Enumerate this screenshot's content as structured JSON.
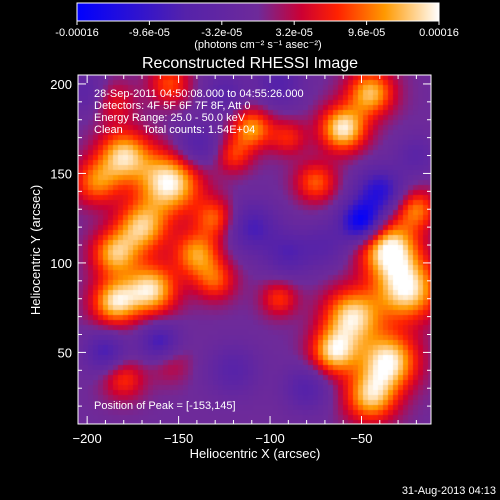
{
  "chart_data": {
    "type": "heatmap",
    "title": "Reconstructed RHESSI Image",
    "xlabel": "Heliocentric X (arcsec)",
    "ylabel": "Heliocentric Y (arcsec)",
    "xlim": [
      -205,
      -12
    ],
    "ylim": [
      10,
      205
    ],
    "x_ticks": [
      -200,
      -150,
      -100,
      -50
    ],
    "y_ticks": [
      50,
      100,
      150,
      200
    ],
    "colorbar": {
      "range": [
        -0.00016,
        0.00016
      ],
      "ticks": [
        -0.00016,
        -9.6e-05,
        -3.2e-05,
        3.2e-05,
        9.6e-05,
        0.00016
      ],
      "tick_labels": [
        "-0.00016",
        "-9.6e-05",
        "-3.2e-05",
        "3.2e-05",
        "9.6e-05",
        "0.00016"
      ],
      "unit_label": "(photons cm⁻² s⁻¹ asec⁻²)",
      "colors": [
        "#0000ff",
        "#6e2a9a",
        "#ff0000",
        "#ff9900",
        "#ffffff"
      ]
    },
    "annotations": {
      "time_range": "28-Sep-2011 04:50:08.000 to 04:55:26.000",
      "detectors": "Detectors: 4F 5F 6F 7F 8F, Att 0",
      "energy": "Energy Range: 25.0 - 50.0 keV",
      "clean": "Clean",
      "counts": "Total counts: 1.54E+04",
      "peak": "Position of Peak = [-153,145]"
    },
    "peak": {
      "x": -153,
      "y": 145
    },
    "sources": [
      {
        "x": -155,
        "y": 145,
        "v": 1.0,
        "s": 12
      },
      {
        "x": -180,
        "y": 160,
        "v": 0.85,
        "s": 10
      },
      {
        "x": -195,
        "y": 145,
        "v": 0.6,
        "s": 9
      },
      {
        "x": -170,
        "y": 120,
        "v": 0.8,
        "s": 10
      },
      {
        "x": -185,
        "y": 105,
        "v": 0.75,
        "s": 9
      },
      {
        "x": -140,
        "y": 105,
        "v": 0.7,
        "s": 9
      },
      {
        "x": -130,
        "y": 125,
        "v": 0.55,
        "s": 8
      },
      {
        "x": -165,
        "y": 85,
        "v": 0.9,
        "s": 10
      },
      {
        "x": -185,
        "y": 78,
        "v": 0.85,
        "s": 9
      },
      {
        "x": -130,
        "y": 90,
        "v": 0.5,
        "s": 8
      },
      {
        "x": -35,
        "y": 108,
        "v": 1.0,
        "s": 11
      },
      {
        "x": -25,
        "y": 85,
        "v": 0.95,
        "s": 12
      },
      {
        "x": -55,
        "y": 70,
        "v": 0.9,
        "s": 11
      },
      {
        "x": -35,
        "y": 45,
        "v": 0.95,
        "s": 11
      },
      {
        "x": -45,
        "y": 25,
        "v": 0.8,
        "s": 10
      },
      {
        "x": -65,
        "y": 50,
        "v": 0.85,
        "s": 9
      },
      {
        "x": -20,
        "y": 130,
        "v": 0.6,
        "s": 8
      },
      {
        "x": -60,
        "y": 175,
        "v": 0.95,
        "s": 9
      },
      {
        "x": -45,
        "y": 195,
        "v": 0.8,
        "s": 9
      },
      {
        "x": -75,
        "y": 145,
        "v": 0.55,
        "s": 8
      },
      {
        "x": -95,
        "y": 80,
        "v": 0.45,
        "s": 7
      },
      {
        "x": -110,
        "y": 175,
        "v": 0.7,
        "s": 8
      },
      {
        "x": -120,
        "y": 160,
        "v": 0.45,
        "s": 7
      },
      {
        "x": -90,
        "y": 170,
        "v": 0.4,
        "s": 7
      },
      {
        "x": -180,
        "y": 35,
        "v": 0.45,
        "s": 8
      },
      {
        "x": -155,
        "y": 45,
        "v": 0.3,
        "s": 8
      },
      {
        "x": -155,
        "y": 200,
        "v": 0.5,
        "s": 8
      },
      {
        "x": -185,
        "y": 190,
        "v": 0.35,
        "s": 8
      },
      {
        "x": -50,
        "y": 123,
        "v": -1.0,
        "s": 8
      },
      {
        "x": -40,
        "y": 140,
        "v": -0.7,
        "s": 9
      },
      {
        "x": -110,
        "y": 120,
        "v": -0.5,
        "s": 10
      },
      {
        "x": -90,
        "y": 105,
        "v": -0.4,
        "s": 9
      },
      {
        "x": -140,
        "y": 165,
        "v": -0.45,
        "s": 9
      },
      {
        "x": -160,
        "y": 55,
        "v": -0.6,
        "s": 8
      },
      {
        "x": -190,
        "y": 50,
        "v": -0.5,
        "s": 8
      },
      {
        "x": -120,
        "y": 40,
        "v": -0.35,
        "s": 10
      },
      {
        "x": -80,
        "y": 30,
        "v": -0.4,
        "s": 9
      },
      {
        "x": -95,
        "y": 200,
        "v": -0.4,
        "s": 9
      },
      {
        "x": -125,
        "y": 195,
        "v": -0.35,
        "s": 8
      },
      {
        "x": -70,
        "y": 110,
        "v": -0.3,
        "s": 9
      },
      {
        "x": -200,
        "y": 195,
        "v": -0.3,
        "s": 8
      },
      {
        "x": -20,
        "y": 160,
        "v": -0.3,
        "s": 8
      }
    ]
  },
  "footer": {
    "timestamp": "31-Aug-2013 04:13"
  }
}
